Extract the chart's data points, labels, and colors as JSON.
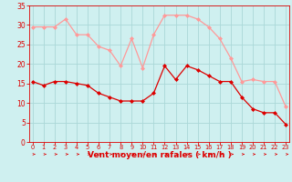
{
  "hours": [
    0,
    1,
    2,
    3,
    4,
    5,
    6,
    7,
    8,
    9,
    10,
    11,
    12,
    13,
    14,
    15,
    16,
    17,
    18,
    19,
    20,
    21,
    22,
    23
  ],
  "vent_moyen": [
    15.5,
    14.5,
    15.5,
    15.5,
    15.0,
    14.5,
    12.5,
    11.5,
    10.5,
    10.5,
    10.5,
    12.5,
    19.5,
    16.0,
    19.5,
    18.5,
    17.0,
    15.5,
    15.5,
    11.5,
    8.5,
    7.5,
    7.5,
    4.5
  ],
  "rafales": [
    29.5,
    29.5,
    29.5,
    31.5,
    27.5,
    27.5,
    24.5,
    23.5,
    19.5,
    26.5,
    19.0,
    27.5,
    32.5,
    32.5,
    32.5,
    31.5,
    29.5,
    26.5,
    21.5,
    15.5,
    16.0,
    15.5,
    15.5,
    9.0
  ],
  "bg_color": "#cff0f0",
  "grid_color": "#aad8d8",
  "line_color_moyen": "#dd0000",
  "line_color_rafales": "#ff9999",
  "xlabel": "Vent moyen/en rafales ( km/h )",
  "xlabel_color": "#dd0000",
  "tick_color": "#dd0000",
  "ylim": [
    0,
    35
  ],
  "yticks": [
    0,
    5,
    10,
    15,
    20,
    25,
    30,
    35
  ]
}
